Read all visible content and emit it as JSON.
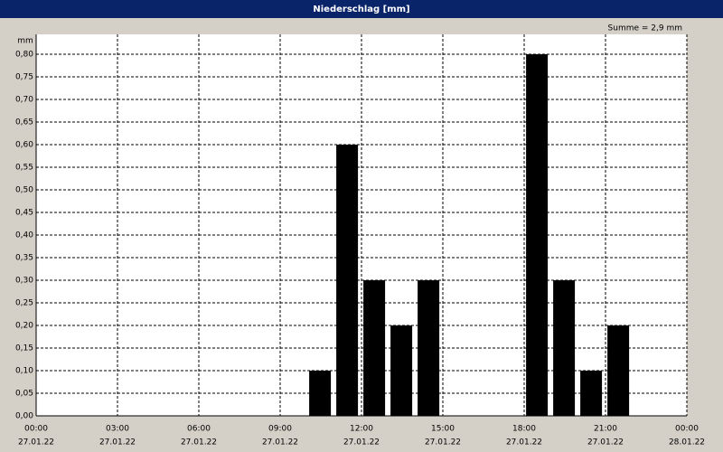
{
  "chart_data": {
    "type": "bar",
    "title": "Niederschlag [mm]",
    "y_unit": "mm",
    "annotation": "Summe = 2,9 mm",
    "x": [
      10,
      11,
      12,
      13,
      14,
      18,
      19,
      20,
      21
    ],
    "values": [
      0.1,
      0.6,
      0.3,
      0.2,
      0.3,
      0.8,
      0.3,
      0.1,
      0.2
    ],
    "color": "#000000",
    "xlim": [
      0,
      24
    ],
    "xticks": [
      {
        "value": 0,
        "label": "00:00"
      },
      {
        "value": 3,
        "label": "03:00"
      },
      {
        "value": 6,
        "label": "06:00"
      },
      {
        "value": 9,
        "label": "09:00"
      },
      {
        "value": 12,
        "label": "12:00"
      },
      {
        "value": 15,
        "label": "15:00"
      },
      {
        "value": 18,
        "label": "18:00"
      },
      {
        "value": 21,
        "label": "21:00"
      },
      {
        "value": 24,
        "label": "00:00"
      }
    ],
    "xtick_dates": [
      "27.01.22",
      "27.01.22",
      "27.01.22",
      "27.01.22",
      "27.01.22",
      "27.01.22",
      "27.01.22",
      "27.01.22",
      "28.01.22"
    ],
    "ylim": [
      0,
      0.8
    ],
    "yticks": [
      {
        "value": 0,
        "label": "0,00"
      },
      {
        "value": 0.05,
        "label": "0,05"
      },
      {
        "value": 0.1,
        "label": "0,10"
      },
      {
        "value": 0.15,
        "label": "0,15"
      },
      {
        "value": 0.2,
        "label": "0,20"
      },
      {
        "value": 0.25,
        "label": "0,25"
      },
      {
        "value": 0.3,
        "label": "0,30"
      },
      {
        "value": 0.35,
        "label": "0,35"
      },
      {
        "value": 0.4,
        "label": "0,40"
      },
      {
        "value": 0.45,
        "label": "0,45"
      },
      {
        "value": 0.5,
        "label": "0,50"
      },
      {
        "value": 0.55,
        "label": "0,55"
      },
      {
        "value": 0.6,
        "label": "0,60"
      },
      {
        "value": 0.65,
        "label": "0,65"
      },
      {
        "value": 0.7,
        "label": "0,70"
      },
      {
        "value": 0.75,
        "label": "0,75"
      },
      {
        "value": 0.8,
        "label": "0,80"
      }
    ],
    "grid": true
  }
}
